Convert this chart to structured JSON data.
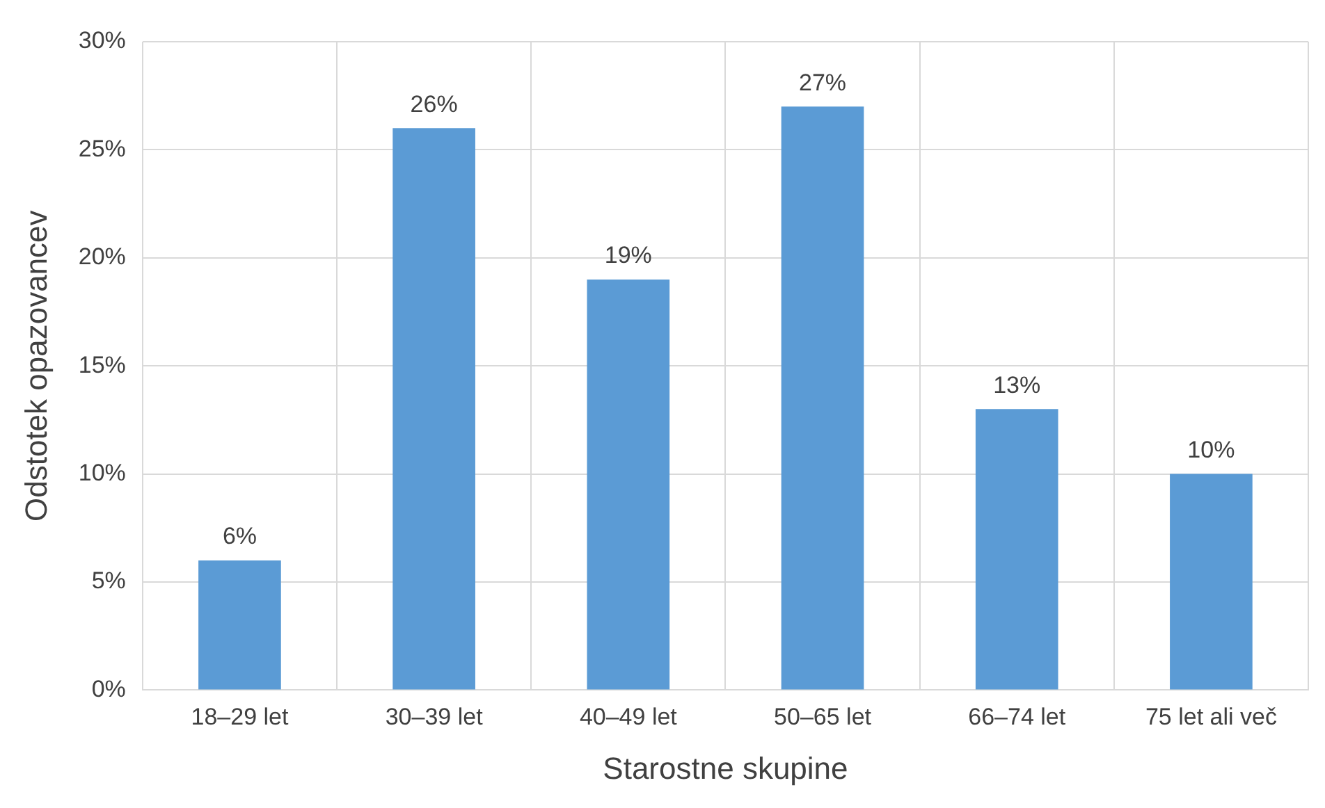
{
  "chart_data": {
    "type": "bar",
    "xlabel": "Starostne skupine",
    "ylabel": "Odstotek opazovancev",
    "categories": [
      "18–29 let",
      "30–39 let",
      "40–49 let",
      "50–65 let",
      "66–74 let",
      "75 let ali več"
    ],
    "values": [
      6,
      26,
      19,
      27,
      13,
      10
    ],
    "value_labels": [
      "6%",
      "26%",
      "19%",
      "27%",
      "13%",
      "10%"
    ],
    "color": "#5b9bd5",
    "ylim": [
      0,
      30
    ],
    "yticks": [
      {
        "value": 0,
        "label": "0%"
      },
      {
        "value": 5,
        "label": "5%"
      },
      {
        "value": 10,
        "label": "10%"
      },
      {
        "value": 15,
        "label": "15%"
      },
      {
        "value": 20,
        "label": "20%"
      },
      {
        "value": 25,
        "label": "25%"
      },
      {
        "value": 30,
        "label": "30%"
      }
    ],
    "grid": true,
    "legend": false
  }
}
